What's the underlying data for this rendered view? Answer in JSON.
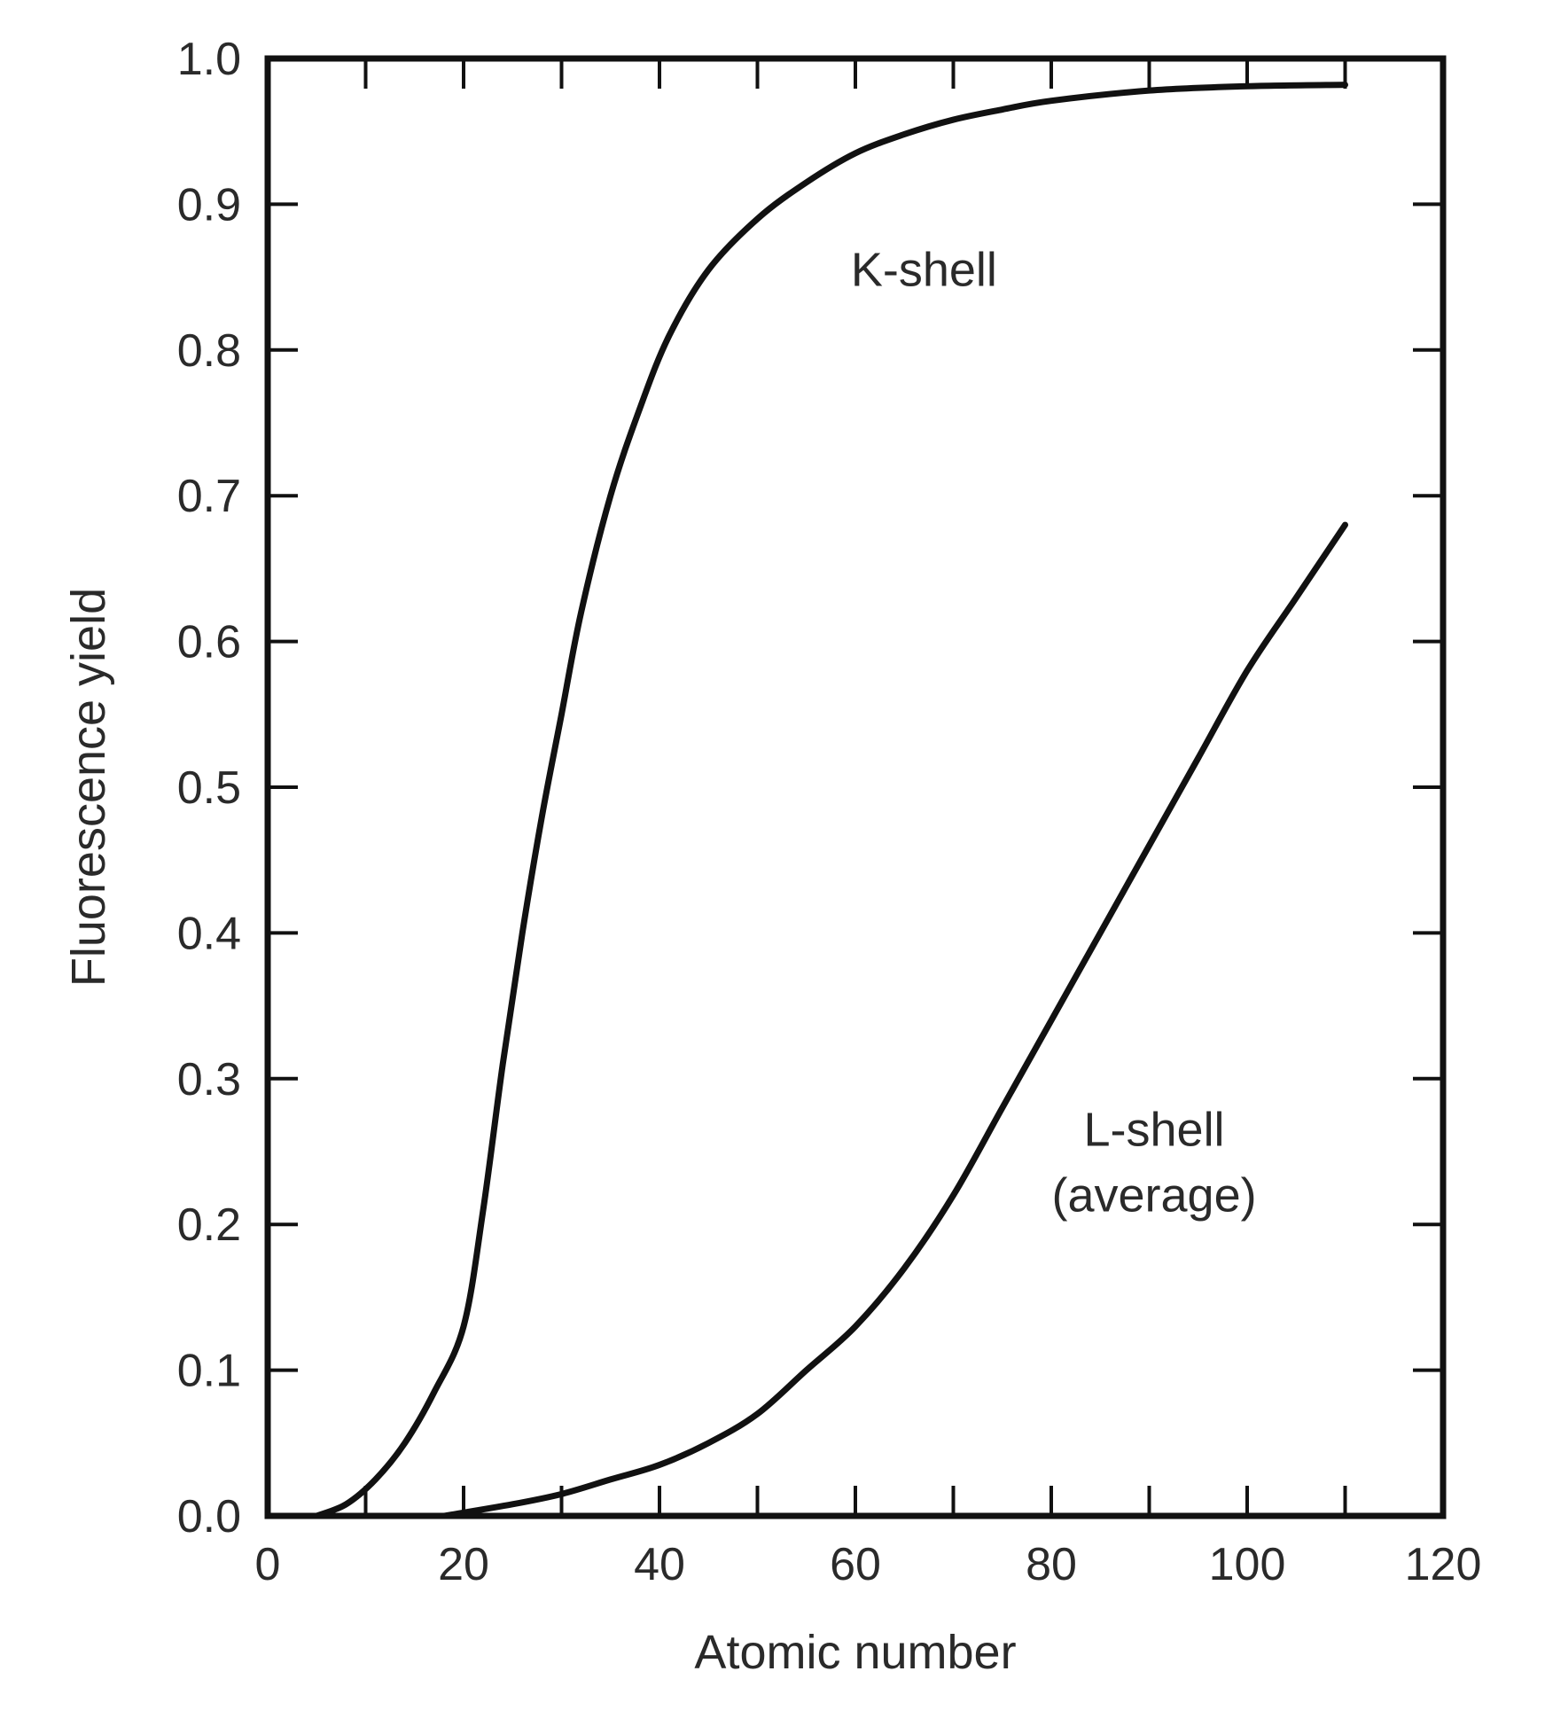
{
  "chart_data": {
    "type": "line",
    "title": "",
    "xlabel": "Atomic number",
    "ylabel": "Fluorescence yield",
    "xlim": [
      0,
      120
    ],
    "ylim": [
      0.0,
      1.0
    ],
    "x_ticks": [
      0,
      20,
      40,
      60,
      80,
      100,
      120
    ],
    "x_tick_labels": [
      "0",
      "20",
      "40",
      "60",
      "80",
      "100",
      "120"
    ],
    "y_ticks": [
      0.0,
      0.1,
      0.2,
      0.3,
      0.4,
      0.5,
      0.6,
      0.7,
      0.8,
      0.9,
      1.0
    ],
    "y_tick_labels": [
      "0.0",
      "0.1",
      "0.2",
      "0.3",
      "0.4",
      "0.5",
      "0.6",
      "0.7",
      "0.8",
      "0.9",
      "1.0"
    ],
    "grid": false,
    "legend": "none",
    "line_color": "#111111",
    "series": [
      {
        "x": [
          5,
          8,
          11,
          14,
          17,
          20,
          22,
          24,
          26,
          28,
          30,
          32,
          35,
          38,
          41,
          45,
          50,
          55,
          60,
          65,
          70,
          75,
          80,
          90,
          100,
          110
        ],
        "y": [
          0.0,
          0.008,
          0.025,
          0.05,
          0.085,
          0.13,
          0.21,
          0.31,
          0.4,
          0.48,
          0.55,
          0.62,
          0.7,
          0.76,
          0.81,
          0.855,
          0.89,
          0.915,
          0.935,
          0.948,
          0.958,
          0.965,
          0.971,
          0.978,
          0.981,
          0.982
        ]
      },
      {
        "x": [
          18,
          25,
          30,
          35,
          40,
          45,
          50,
          55,
          60,
          65,
          70,
          75,
          80,
          85,
          90,
          95,
          100,
          105,
          110
        ],
        "y": [
          0.0,
          0.008,
          0.015,
          0.025,
          0.035,
          0.05,
          0.07,
          0.1,
          0.13,
          0.17,
          0.22,
          0.28,
          0.34,
          0.4,
          0.46,
          0.52,
          0.58,
          0.63,
          0.68
        ]
      }
    ],
    "annotations": [
      {
        "text": "K-shell",
        "x": 67,
        "y": 0.855
      },
      {
        "text": "L-shell",
        "x": 90.5,
        "y": 0.265
      },
      {
        "text": "(average)",
        "x": 90.5,
        "y": 0.22
      }
    ]
  }
}
